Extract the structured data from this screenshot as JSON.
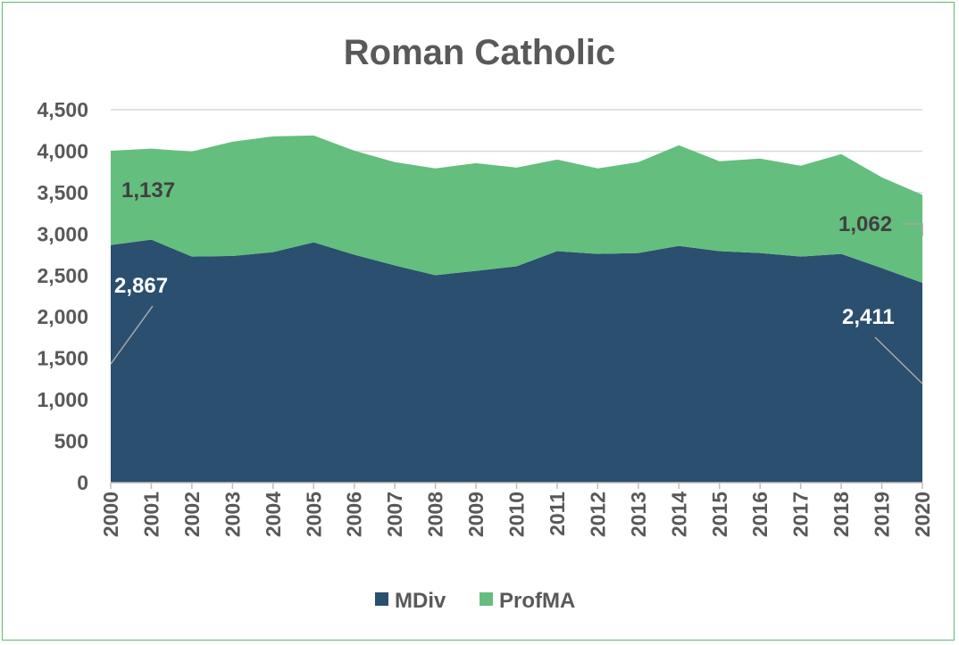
{
  "chart_data": {
    "type": "area",
    "stacked": true,
    "title": "Roman Catholic",
    "categories": [
      "2000",
      "2001",
      "2002",
      "2003",
      "2004",
      "2005",
      "2006",
      "2007",
      "2008",
      "2009",
      "2010",
      "2011",
      "2012",
      "2013",
      "2014",
      "2015",
      "2016",
      "2017",
      "2018",
      "2019",
      "2020"
    ],
    "series": [
      {
        "name": "MDiv",
        "color": "#2a4f6f",
        "values": [
          2867,
          2932,
          2728,
          2735,
          2782,
          2900,
          2750,
          2621,
          2503,
          2556,
          2610,
          2793,
          2760,
          2771,
          2857,
          2793,
          2771,
          2728,
          2760,
          2589,
          2411
        ]
      },
      {
        "name": "ProfMA",
        "color": "#64be7d",
        "values": [
          1137,
          1098,
          1267,
          1379,
          1396,
          1289,
          1256,
          1246,
          1289,
          1300,
          1192,
          1106,
          1032,
          1096,
          1214,
          1085,
          1139,
          1096,
          1204,
          1095,
          1062
        ]
      }
    ],
    "ylim": [
      0,
      4500
    ],
    "yticks": [
      "0",
      "500",
      "1,000",
      "1,500",
      "2,000",
      "2,500",
      "3,000",
      "3,500",
      "4,000",
      "4,500"
    ],
    "grid": true,
    "legend": "bottom",
    "data_labels": [
      {
        "series": "MDiv",
        "category": "2000",
        "text": "2,867"
      },
      {
        "series": "ProfMA",
        "category": "2000",
        "text": "1,137"
      },
      {
        "series": "MDiv",
        "category": "2020",
        "text": "2,411"
      },
      {
        "series": "ProfMA",
        "category": "2020",
        "text": "1,062"
      }
    ]
  }
}
